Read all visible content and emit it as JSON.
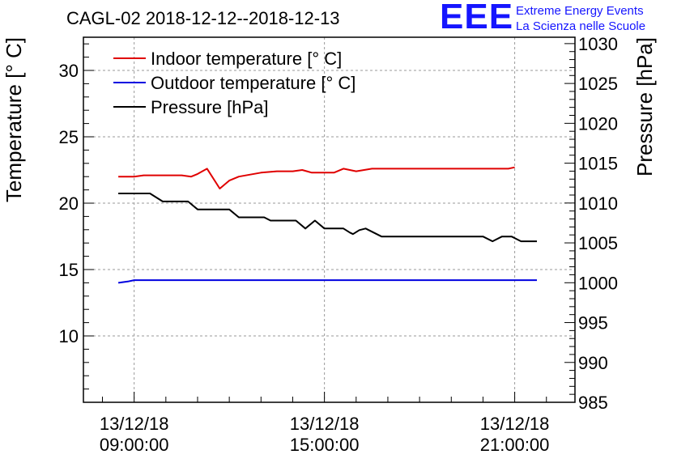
{
  "header": {
    "title": "CAGL-02 2018-12-12--2018-12-13"
  },
  "logo": {
    "letters": "EEE",
    "line1": "Extreme Energy Events",
    "line2": "La Scienza nelle Scuole",
    "color": "#1515ff"
  },
  "chart_data": {
    "type": "line",
    "title": "CAGL-02 2018-12-12--2018-12-13",
    "xlabel": "",
    "ylabel": "Temperature [° C]",
    "y2label": "Pressure [hPa]",
    "ylim": [
      5,
      32.5
    ],
    "y2lim": [
      985,
      1030.8
    ],
    "xlim": [
      6.4,
      21.9
    ],
    "grid": true,
    "legend_position": "top-left",
    "x_ticks": [
      {
        "x": 8,
        "date": "13/12/18",
        "time": "09:00:00"
      },
      {
        "x": 14,
        "date": "13/12/18",
        "time": "15:00:00"
      },
      {
        "x": 20,
        "date": "13/12/18",
        "time": "21:00:00"
      }
    ],
    "y_ticks": [
      "10",
      "15",
      "20",
      "25",
      "30"
    ],
    "y2_ticks": [
      "985",
      "990",
      "995",
      "1000",
      "1005",
      "1010",
      "1015",
      "1020",
      "1025",
      "1030"
    ],
    "series": [
      {
        "name": "Indoor temperature [° C]",
        "axis": "left",
        "color": "#e00000",
        "points": [
          [
            7.5,
            22.0
          ],
          [
            8.0,
            22.0
          ],
          [
            8.3,
            22.1
          ],
          [
            9.5,
            22.1
          ],
          [
            9.8,
            22.0
          ],
          [
            10.0,
            22.2
          ],
          [
            10.3,
            22.6
          ],
          [
            10.7,
            21.1
          ],
          [
            11.0,
            21.7
          ],
          [
            11.3,
            22.0
          ],
          [
            12.0,
            22.3
          ],
          [
            12.5,
            22.4
          ],
          [
            13.0,
            22.4
          ],
          [
            13.3,
            22.5
          ],
          [
            13.6,
            22.3
          ],
          [
            14.0,
            22.3
          ],
          [
            14.3,
            22.3
          ],
          [
            14.6,
            22.6
          ],
          [
            15.0,
            22.4
          ],
          [
            15.5,
            22.6
          ],
          [
            16.0,
            22.6
          ],
          [
            17.0,
            22.6
          ],
          [
            18.0,
            22.6
          ],
          [
            19.0,
            22.6
          ],
          [
            19.8,
            22.6
          ],
          [
            20.0,
            22.7
          ]
        ]
      },
      {
        "name": "Outdoor temperature [° C]",
        "axis": "left",
        "color": "#0000e0",
        "points": [
          [
            7.5,
            14.0
          ],
          [
            7.8,
            14.1
          ],
          [
            8.0,
            14.2
          ],
          [
            10.0,
            14.2
          ],
          [
            14.0,
            14.2
          ],
          [
            18.0,
            14.2
          ],
          [
            20.0,
            14.2
          ],
          [
            20.7,
            14.2
          ]
        ]
      },
      {
        "name": "Pressure [hPa]",
        "axis": "right",
        "color": "#000000",
        "points": [
          [
            7.5,
            1011.2
          ],
          [
            8.5,
            1011.2
          ],
          [
            8.9,
            1010.2
          ],
          [
            9.7,
            1010.2
          ],
          [
            10.0,
            1009.2
          ],
          [
            11.0,
            1009.2
          ],
          [
            11.3,
            1008.2
          ],
          [
            12.1,
            1008.2
          ],
          [
            12.3,
            1007.8
          ],
          [
            13.1,
            1007.8
          ],
          [
            13.4,
            1006.8
          ],
          [
            13.7,
            1007.8
          ],
          [
            14.0,
            1006.8
          ],
          [
            14.6,
            1006.8
          ],
          [
            14.8,
            1006.3
          ],
          [
            14.9,
            1006.1
          ],
          [
            15.1,
            1006.6
          ],
          [
            15.3,
            1006.8
          ],
          [
            15.8,
            1005.8
          ],
          [
            16.0,
            1005.8
          ],
          [
            18.0,
            1005.8
          ],
          [
            19.0,
            1005.8
          ],
          [
            19.3,
            1005.2
          ],
          [
            19.6,
            1005.8
          ],
          [
            19.9,
            1005.8
          ],
          [
            20.2,
            1005.2
          ],
          [
            20.7,
            1005.2
          ]
        ]
      }
    ]
  }
}
